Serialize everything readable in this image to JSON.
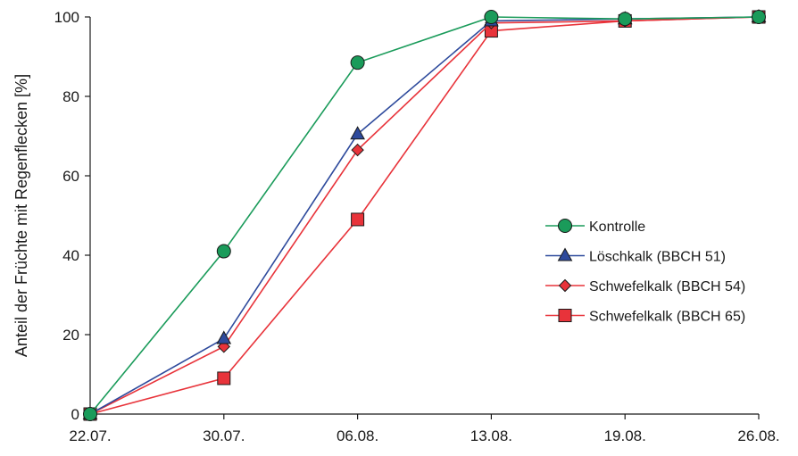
{
  "chart_data": {
    "type": "line",
    "title": "",
    "xlabel": "",
    "ylabel": "Anteil der Früchte mit Regenflecken [%]",
    "categories": [
      "22.07.",
      "30.07.",
      "06.08.",
      "13.08.",
      "19.08.",
      "26.08."
    ],
    "yticks": [
      "0",
      "20",
      "40",
      "60",
      "80",
      "100"
    ],
    "ylim": [
      0,
      100
    ],
    "grid": false,
    "legend_position": "right",
    "series": [
      {
        "name": "Kontrolle",
        "marker": "circle",
        "color": "#1a9b5a",
        "fill": "#1a9b5a",
        "values": [
          0,
          41,
          88.5,
          100,
          99.5,
          100
        ]
      },
      {
        "name": "Löschkalk (BBCH 51)",
        "marker": "triangle",
        "color": "#2e4a9c",
        "fill": "#2e4a9c",
        "values": [
          0,
          19,
          70.5,
          99,
          99.5,
          100
        ]
      },
      {
        "name": "Schwefelkalk (BBCH 54)",
        "marker": "diamond",
        "color": "#e8333a",
        "fill": "#e8333a",
        "values": [
          0,
          17,
          66.5,
          98.5,
          99,
          100
        ]
      },
      {
        "name": "Schwefelkalk (BBCH 65)",
        "marker": "square",
        "color": "#e8333a",
        "fill": "#e8333a",
        "values": [
          0,
          9,
          49,
          96.5,
          99,
          100
        ]
      }
    ]
  }
}
